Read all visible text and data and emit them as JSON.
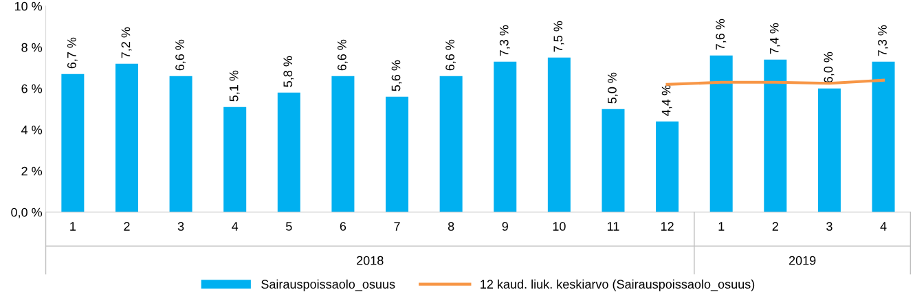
{
  "chart_data": {
    "type": "bar",
    "categories": [
      "1",
      "2",
      "3",
      "4",
      "5",
      "6",
      "7",
      "8",
      "9",
      "10",
      "11",
      "12",
      "1",
      "2",
      "3",
      "4"
    ],
    "series": [
      {
        "name": "Sairauspoissaolo_osuus",
        "type": "bar",
        "color": "#00b0f0",
        "values": [
          6.7,
          7.2,
          6.6,
          5.1,
          5.8,
          6.6,
          5.6,
          6.6,
          7.3,
          7.5,
          5.0,
          4.4,
          7.6,
          7.4,
          6.0,
          7.3
        ],
        "value_labels": [
          "6,7 %",
          "7,2 %",
          "6,6 %",
          "5,1 %",
          "5,8 %",
          "6,6 %",
          "5,6 %",
          "6,6 %",
          "7,3 %",
          "7,5 %",
          "5,0 %",
          "4,4 %",
          "7,6 %",
          "7,4 %",
          "6,0 %",
          "7,3 %"
        ]
      },
      {
        "name": "12 kaud. liuk. keskiarvo (Sairauspoissaolo_osuus)",
        "type": "line",
        "color": "#f79646",
        "values": [
          null,
          null,
          null,
          null,
          null,
          null,
          null,
          null,
          null,
          null,
          null,
          6.2,
          6.3,
          6.3,
          6.25,
          6.4
        ]
      }
    ],
    "ylim": [
      0,
      10
    ],
    "yticks": [
      {
        "value": 0,
        "label": "0,0 %"
      },
      {
        "value": 2,
        "label": "2 %"
      },
      {
        "value": 4,
        "label": "4 %"
      },
      {
        "value": 6,
        "label": "6 %"
      },
      {
        "value": 8,
        "label": "8 %"
      },
      {
        "value": 10,
        "label": "10 %"
      }
    ],
    "annotations": [
      "2018",
      "2019"
    ],
    "legend": "bottom",
    "grid": false
  }
}
